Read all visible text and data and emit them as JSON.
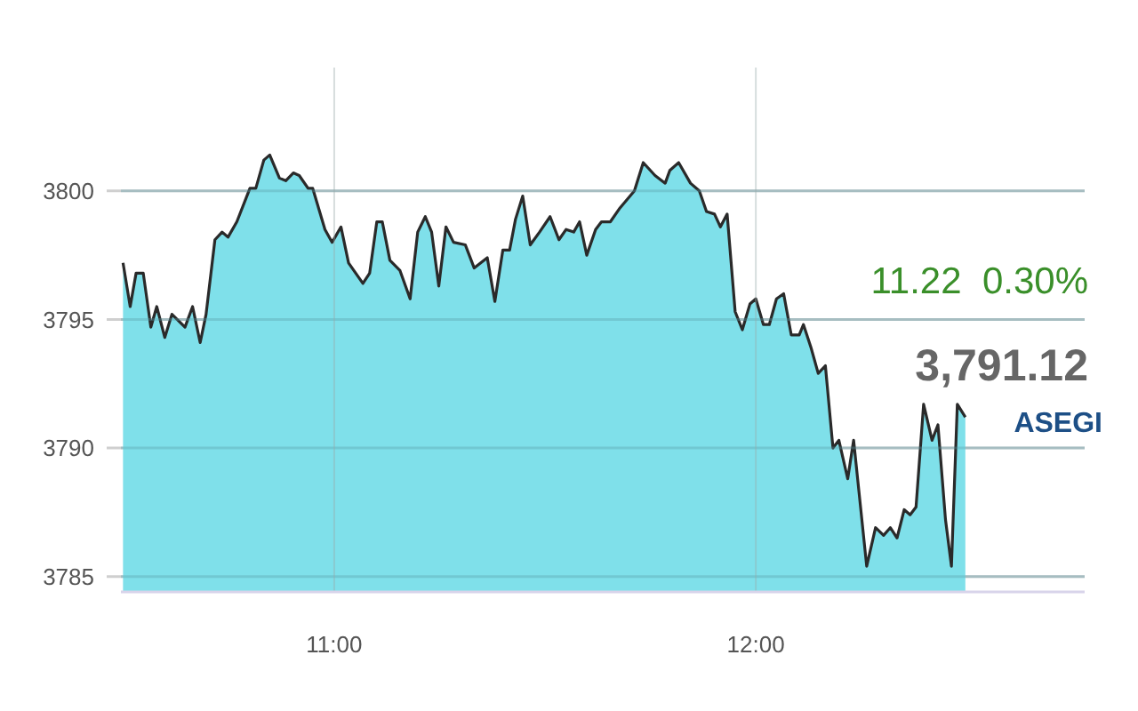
{
  "chart_data": {
    "type": "area",
    "x": [
      10.499,
      10.516,
      10.53,
      10.547,
      10.565,
      10.579,
      10.598,
      10.615,
      10.646,
      10.664,
      10.682,
      10.696,
      10.717,
      10.734,
      10.748,
      10.769,
      10.8,
      10.814,
      10.833,
      10.847,
      10.87,
      10.885,
      10.903,
      10.917,
      10.938,
      10.949,
      10.978,
      10.995,
      11.016,
      11.034,
      11.051,
      11.068,
      11.084,
      11.101,
      11.114,
      11.132,
      11.156,
      11.18,
      11.198,
      11.216,
      11.231,
      11.248,
      11.265,
      11.283,
      11.311,
      11.332,
      11.363,
      11.381,
      11.4,
      11.416,
      11.43,
      11.447,
      11.465,
      11.487,
      11.512,
      11.533,
      11.55,
      11.568,
      11.582,
      11.599,
      11.62,
      11.634,
      11.655,
      11.676,
      11.712,
      11.733,
      11.761,
      11.785,
      11.796,
      11.817,
      11.845,
      11.866,
      11.883,
      11.902,
      11.916,
      11.932,
      11.951,
      11.968,
      11.986,
      12.0,
      12.018,
      12.032,
      12.049,
      12.066,
      12.084,
      12.103,
      12.113,
      12.131,
      12.148,
      12.165,
      12.183,
      12.197,
      12.218,
      12.232,
      12.263,
      12.284,
      12.303,
      12.319,
      12.335,
      12.352,
      12.366,
      12.38,
      12.398,
      12.418,
      12.432,
      12.45,
      12.464,
      12.478,
      12.497
    ],
    "series": [
      {
        "color": "#7fe0ea",
        "values": [
          3797.2,
          3795.5,
          3796.8,
          3796.8,
          3794.7,
          3795.5,
          3794.3,
          3795.2,
          3794.7,
          3795.5,
          3794.1,
          3795.2,
          3798.1,
          3798.4,
          3798.2,
          3798.8,
          3800.1,
          3800.1,
          3801.2,
          3801.4,
          3800.5,
          3800.4,
          3800.7,
          3800.6,
          3800.1,
          3800.1,
          3798.5,
          3798.0,
          3798.6,
          3797.2,
          3796.8,
          3796.4,
          3796.8,
          3798.8,
          3798.8,
          3797.3,
          3796.9,
          3795.8,
          3798.4,
          3799.0,
          3798.4,
          3796.3,
          3798.6,
          3798.0,
          3797.9,
          3797.0,
          3797.4,
          3795.7,
          3797.7,
          3797.7,
          3798.9,
          3799.8,
          3797.9,
          3798.4,
          3799.0,
          3798.1,
          3798.5,
          3798.4,
          3798.8,
          3797.5,
          3798.5,
          3798.8,
          3798.8,
          3799.3,
          3800.0,
          3801.1,
          3800.6,
          3800.3,
          3800.8,
          3801.1,
          3800.3,
          3800.0,
          3799.2,
          3799.1,
          3798.6,
          3799.1,
          3795.3,
          3794.6,
          3795.6,
          3795.8,
          3794.8,
          3794.8,
          3795.8,
          3796.0,
          3794.4,
          3794.4,
          3794.8,
          3793.9,
          3792.9,
          3793.2,
          3790.0,
          3790.3,
          3788.8,
          3790.3,
          3785.4,
          3786.9,
          3786.6,
          3786.9,
          3786.5,
          3787.6,
          3787.4,
          3787.7,
          3791.7,
          3790.3,
          3790.9,
          3787.2,
          3785.4,
          3791.7,
          3791.2
        ]
      }
    ],
    "xlim": [
      10.494,
      12.78
    ],
    "ylim": [
      3784.4,
      3804.8
    ],
    "xticks": [
      {
        "value": 11,
        "label": "11:00"
      },
      {
        "value": 12,
        "label": "12:00"
      }
    ],
    "yticks": [
      3785,
      3790,
      3795,
      3800
    ],
    "grid": true,
    "annotations": [
      "11.22  0.30%",
      "3,791.12",
      "ASEGI"
    ]
  }
}
